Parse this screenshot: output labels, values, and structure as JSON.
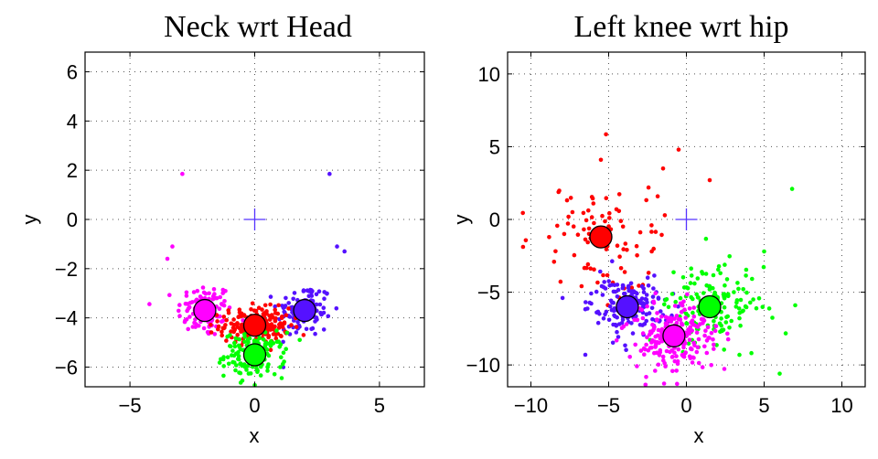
{
  "chart_data": [
    {
      "type": "scatter",
      "title": "Neck wrt Head",
      "xlabel": "x",
      "ylabel": "y",
      "xlim": [
        -6.8,
        6.8
      ],
      "ylim": [
        -6.8,
        6.8
      ],
      "xticks": [
        -5,
        0,
        5
      ],
      "yticks": [
        -6,
        -4,
        -2,
        0,
        2,
        4,
        6
      ],
      "grid": true,
      "origin_marker": {
        "x": 0,
        "y": 0,
        "color": "#5533ff"
      },
      "clusters": [
        {
          "color": "#ff00ff",
          "center": [
            -2.0,
            -3.7
          ],
          "spread": [
            0.55,
            0.55
          ],
          "count": 110,
          "outliers": [
            [
              -2.9,
              1.85
            ],
            [
              -3.5,
              -1.6
            ],
            [
              -3.3,
              -1.1
            ]
          ]
        },
        {
          "color": "#5511ff",
          "center": [
            2.0,
            -3.7
          ],
          "spread": [
            0.55,
            0.55
          ],
          "count": 110,
          "outliers": [
            [
              3.0,
              1.85
            ],
            [
              3.6,
              -1.3
            ],
            [
              3.3,
              -1.1
            ]
          ]
        },
        {
          "color": "#ff0000",
          "center": [
            0.0,
            -4.3
          ],
          "spread": [
            0.7,
            0.35
          ],
          "count": 200,
          "outliers": []
        },
        {
          "color": "#00ff00",
          "center": [
            0.0,
            -5.5
          ],
          "spread": [
            0.6,
            0.45
          ],
          "count": 150,
          "outliers": []
        }
      ]
    },
    {
      "type": "scatter",
      "title": "Left knee wrt hip",
      "xlabel": "x",
      "ylabel": "y",
      "xlim": [
        -11.5,
        11.5
      ],
      "ylim": [
        -11.5,
        11.5
      ],
      "xticks": [
        -10,
        -5,
        0,
        5,
        10
      ],
      "yticks": [
        -10,
        -5,
        0,
        5,
        10
      ],
      "grid": true,
      "origin_marker": {
        "x": 0,
        "y": 0,
        "color": "#5533ff"
      },
      "clusters": [
        {
          "color": "#ff0000",
          "center": [
            -5.5,
            -1.2
          ],
          "spread": [
            2.0,
            2.0
          ],
          "count": 90,
          "outliers": [
            [
              -0.5,
              4.8
            ],
            [
              -1.5,
              3.5
            ],
            [
              -5.5,
              4.1
            ],
            [
              1.5,
              2.7
            ]
          ]
        },
        {
          "color": "#5511ff",
          "center": [
            -3.8,
            -6.0
          ],
          "spread": [
            1.3,
            1.0
          ],
          "count": 150,
          "outliers": [
            [
              -6.5,
              -9.3
            ]
          ]
        },
        {
          "color": "#00ff00",
          "center": [
            1.5,
            -6.0
          ],
          "spread": [
            1.7,
            1.5
          ],
          "count": 150,
          "outliers": [
            [
              6.8,
              2.1
            ],
            [
              7.0,
              -5.9
            ],
            [
              6.0,
              -10.6
            ],
            [
              5.0,
              -2.2
            ]
          ]
        },
        {
          "color": "#ff00ff",
          "center": [
            -0.8,
            -8.0
          ],
          "spread": [
            1.5,
            1.2
          ],
          "count": 220,
          "outliers": [
            [
              -0.6,
              -11.3
            ]
          ]
        }
      ]
    }
  ]
}
